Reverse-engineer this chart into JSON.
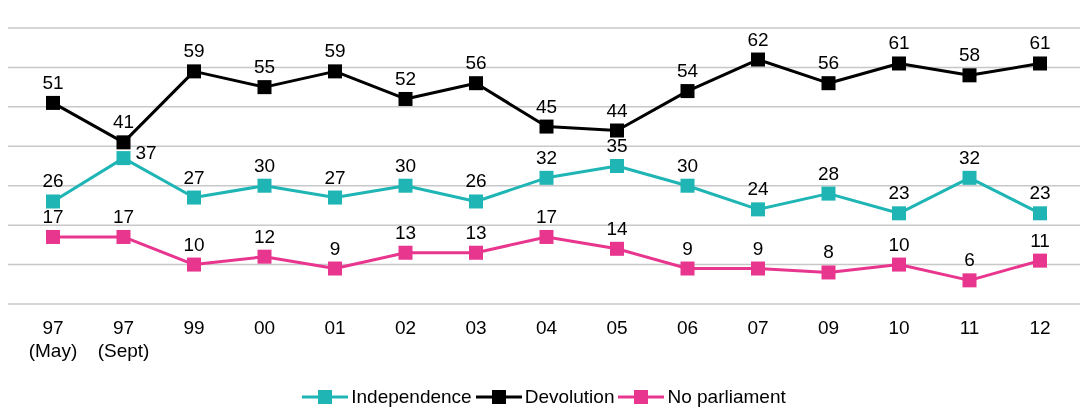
{
  "chart_data": {
    "type": "line",
    "categories": [
      "97\n(May)",
      "97\n(Sept)",
      "99",
      "00",
      "01",
      "02",
      "03",
      "04",
      "05",
      "06",
      "07",
      "09",
      "10",
      "11",
      "12"
    ],
    "series": [
      {
        "name": "Independence",
        "color": "#1fb5b5",
        "values": [
          26,
          37,
          27,
          30,
          27,
          30,
          26,
          32,
          35,
          30,
          24,
          28,
          23,
          32,
          23
        ]
      },
      {
        "name": "Devolution",
        "color": "#000000",
        "values": [
          51,
          41,
          59,
          55,
          59,
          52,
          56,
          45,
          44,
          54,
          62,
          56,
          61,
          58,
          61
        ]
      },
      {
        "name": "No parliament",
        "color": "#e8368f",
        "values": [
          17,
          17,
          10,
          12,
          9,
          13,
          13,
          17,
          14,
          9,
          9,
          8,
          10,
          6,
          11
        ]
      }
    ],
    "ylim": [
      0,
      70
    ],
    "yticks": [
      {
        "value": 0,
        "label": null
      },
      {
        "value": 10,
        "label": null
      },
      {
        "value": 20,
        "label": null
      },
      {
        "value": 30,
        "label": null
      },
      {
        "value": 40,
        "label": null
      },
      {
        "value": 50,
        "label": null
      },
      {
        "value": 60,
        "label": null
      },
      {
        "value": 70,
        "label": null
      }
    ],
    "tick_labels": "x",
    "grid": "y",
    "legend": "bottom",
    "marker": "square",
    "line_style": "solid",
    "data_labels": true
  }
}
